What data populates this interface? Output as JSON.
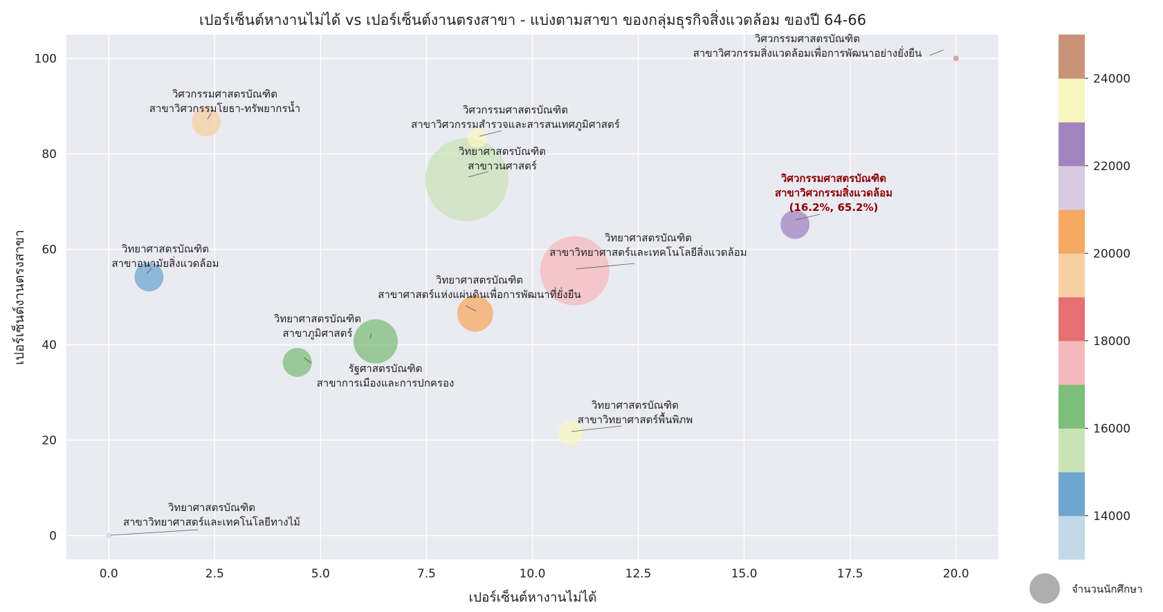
{
  "chart_data": {
    "type": "scatter",
    "title": "เปอร์เซ็นต์หางานไม่ได้ vs เปอร์เซ็นต์งานตรงสาขา - แบ่งตามสาขา ของกลุ่มธุรกิจสิ่งแวดล้อม ของปี 64-66",
    "xlabel": "เปอร์เซ็นต์หางานไม่ได้",
    "ylabel": "เปอร์เซ็นต์งานตรงสาขา",
    "xlim": [
      -1.0,
      21.0
    ],
    "ylim": [
      -5,
      105
    ],
    "xticks": [
      0.0,
      2.5,
      5.0,
      7.5,
      10.0,
      12.5,
      15.0,
      17.5,
      20.0
    ],
    "xtick_labels": [
      "0.0",
      "2.5",
      "5.0",
      "7.5",
      "10.0",
      "12.5",
      "15.0",
      "17.5",
      "20.0"
    ],
    "yticks": [
      0,
      20,
      40,
      60,
      80,
      100
    ],
    "ytick_labels": [
      "0",
      "20",
      "40",
      "60",
      "80",
      "100"
    ],
    "grid": true,
    "size_legend_label": "จำนวนนักศึกษา",
    "colorbar": {
      "min": 13000,
      "max": 25000,
      "tick_values": [
        14000,
        16000,
        18000,
        20000,
        22000,
        24000
      ],
      "tick_labels": [
        "14000",
        "16000",
        "18000",
        "20000",
        "22000",
        "24000"
      ],
      "colors": [
        "#c3d9ea",
        "#6fa6cf",
        "#c9e3b7",
        "#7dbe7a",
        "#f4b9bc",
        "#e57074",
        "#f6cfa2",
        "#f5a963",
        "#d8cae2",
        "#a084c0",
        "#f7f5c0",
        "#c9937a"
      ]
    },
    "points": [
      {
        "line1": "วิศวกรรมศาสตรบัณฑิต",
        "line2": "สาขาวิศวกรรมสิ่งแวดล้อมเพื่อการพัฒนาอย่างยั่งยืน",
        "x": 20.0,
        "y": 100.0,
        "color": "#c9937a",
        "size_class": 1
      },
      {
        "line1": "วิศวกรรมศาสตรบัณฑิต",
        "line2": "สาขาวิศวกรรมโยธา-ทรัพยากรน้ำ",
        "x": 2.3,
        "y": 86.7,
        "color": "#f6cfa2",
        "size_class": 4
      },
      {
        "line1": "วิศวกรรมศาสตรบัณฑิต",
        "line2": "สาขาวิศวกรรมสำรวจและสารสนเทศภูมิศาสตร์",
        "x": 8.7,
        "y": 83.3,
        "color": "#f7f5c0",
        "size_class": 2
      },
      {
        "line1": "วิทยาศาสตรบัณฑิต",
        "line2": "สาขาวนศาสตร์",
        "x": 8.45,
        "y": 74.6,
        "color": "#c9e3b7",
        "size_class": 9
      },
      {
        "line1": "วิศวกรรมศาสตรบัณฑิต",
        "line2": "สาขาวิศวกรรมสิ่งแวดล้อม",
        "line3": "(16.2%, 65.2%)",
        "x": 16.2,
        "y": 65.2,
        "color": "#a084c0",
        "size_class": 4,
        "highlight": true
      },
      {
        "line1": "วิทยาศาสตรบัณฑิต",
        "line2": "สาขาวิทยาศาสตร์และเทคโนโลยีสิ่งแวดล้อม",
        "x": 11.0,
        "y": 55.5,
        "color": "#f4b9bc",
        "size_class": 8
      },
      {
        "line1": "วิทยาศาสตรบัณฑิต",
        "line2": "สาขาอนามัยสิ่งแวดล้อม",
        "x": 0.95,
        "y": 54.2,
        "color": "#6fa6cf",
        "size_class": 4
      },
      {
        "line1": "วิทยาศาสตรบัณฑิต",
        "line2": "สาขาศาสตร์แห่งแผ่นดินเพื่อการพัฒนาที่ยั่งยืน",
        "x": 8.65,
        "y": 46.5,
        "color": "#f5a963",
        "size_class": 5
      },
      {
        "line1": "รัฐศาสตรบัณฑิต",
        "line2": "สาขาการเมืองและการปกครอง",
        "x": 6.3,
        "y": 40.7,
        "color": "#7dbe7a",
        "size_class": 6
      },
      {
        "line1": "วิทยาศาสตรบัณฑิต",
        "line2": "สาขาภูมิศาสตร์",
        "x": 4.45,
        "y": 36.3,
        "color": "#7dbe7a",
        "size_class": 4
      },
      {
        "line1": "วิทยาศาสตรบัณฑิต",
        "line2": "สาขาวิทยาศาสตร์พื้นพิภพ",
        "x": 10.9,
        "y": 21.5,
        "color": "#f7f5c0",
        "size_class": 3
      },
      {
        "line1": "วิทยาศาสตรบัณฑิต",
        "line2": "สาขาวิทยาศาสตร์และเทคโนโลยีทางไม้",
        "x": 0.0,
        "y": 0.0,
        "color": "#c3d9ea",
        "size_class": 1
      }
    ]
  }
}
